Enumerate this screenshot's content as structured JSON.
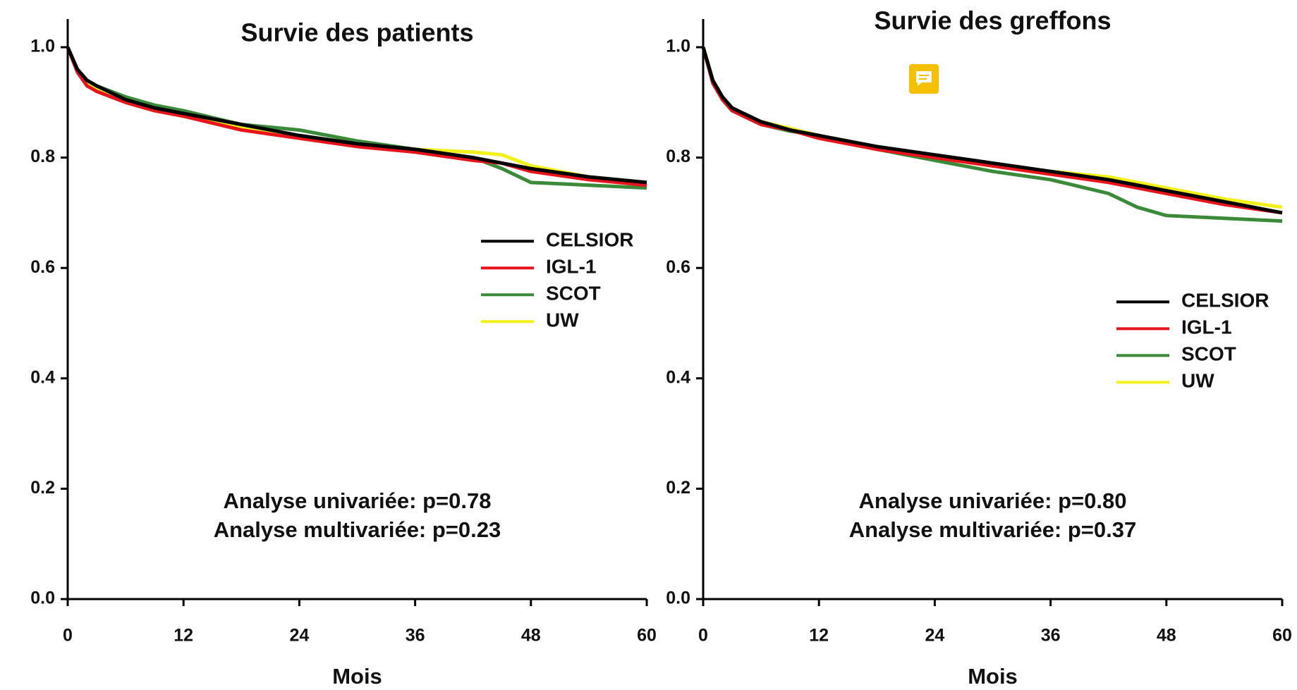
{
  "chart_data": [
    {
      "type": "line",
      "title": "Survie des patients",
      "xlabel": "Mois",
      "annotations": [
        "Analyse univariée: p=0.78",
        "Analyse multivariée: p=0.23"
      ],
      "x": [
        0,
        1,
        2,
        3,
        6,
        9,
        12,
        18,
        24,
        30,
        36,
        42,
        45,
        48,
        54,
        60
      ],
      "series": [
        {
          "name": "CELSIOR",
          "color": "#000000",
          "values": [
            1.0,
            0.96,
            0.94,
            0.93,
            0.905,
            0.89,
            0.88,
            0.86,
            0.84,
            0.825,
            0.815,
            0.8,
            0.79,
            0.78,
            0.765,
            0.755
          ]
        },
        {
          "name": "IGL-1",
          "color": "#e8141c",
          "values": [
            1.0,
            0.955,
            0.93,
            0.92,
            0.9,
            0.885,
            0.875,
            0.85,
            0.835,
            0.82,
            0.81,
            0.795,
            0.79,
            0.775,
            0.76,
            0.75
          ]
        },
        {
          "name": "SCOT",
          "color": "#3a8a3a",
          "values": [
            1.0,
            0.96,
            0.94,
            0.93,
            0.91,
            0.895,
            0.885,
            0.86,
            0.85,
            0.83,
            0.815,
            0.8,
            0.78,
            0.755,
            0.75,
            0.745
          ]
        },
        {
          "name": "UW",
          "color": "#f2f21a",
          "values": [
            1.0,
            0.96,
            0.935,
            0.925,
            0.905,
            0.89,
            0.88,
            0.855,
            0.84,
            0.825,
            0.815,
            0.81,
            0.805,
            0.785,
            0.765,
            0.755
          ]
        }
      ],
      "xlim": [
        0,
        60
      ],
      "xticks": [
        0,
        12,
        24,
        36,
        48,
        60
      ],
      "ylim": [
        0,
        1
      ],
      "yticks": [
        {
          "value": 0,
          "label": "0.0"
        },
        0.2,
        0.4,
        0.6,
        0.8,
        {
          "value": 1,
          "label": "1.0"
        }
      ],
      "legend": "upper right"
    },
    {
      "type": "line",
      "title": "Survie des greffons",
      "xlabel": "Mois",
      "annotations": [
        "Analyse univariée: p=0.80",
        "Analyse multivariée: p=0.37"
      ],
      "x": [
        0,
        1,
        2,
        3,
        6,
        9,
        12,
        18,
        24,
        30,
        36,
        42,
        45,
        48,
        54,
        60
      ],
      "series": [
        {
          "name": "CELSIOR",
          "color": "#000000",
          "values": [
            1.0,
            0.94,
            0.91,
            0.89,
            0.865,
            0.85,
            0.84,
            0.82,
            0.805,
            0.79,
            0.775,
            0.76,
            0.75,
            0.74,
            0.72,
            0.7
          ]
        },
        {
          "name": "IGL-1",
          "color": "#e8141c",
          "values": [
            1.0,
            0.935,
            0.905,
            0.885,
            0.86,
            0.85,
            0.835,
            0.815,
            0.8,
            0.785,
            0.77,
            0.755,
            0.745,
            0.735,
            0.715,
            0.7
          ]
        },
        {
          "name": "SCOT",
          "color": "#3a8a3a",
          "values": [
            1.0,
            0.94,
            0.905,
            0.885,
            0.86,
            0.848,
            0.84,
            0.815,
            0.795,
            0.775,
            0.76,
            0.735,
            0.71,
            0.695,
            0.69,
            0.685
          ]
        },
        {
          "name": "UW",
          "color": "#f2f21a",
          "values": [
            1.0,
            0.94,
            0.91,
            0.89,
            0.865,
            0.853,
            0.84,
            0.82,
            0.8,
            0.785,
            0.775,
            0.765,
            0.755,
            0.745,
            0.725,
            0.71
          ]
        }
      ],
      "xlim": [
        0,
        60
      ],
      "xticks": [
        0,
        12,
        24,
        36,
        48,
        60
      ],
      "ylim": [
        0,
        1
      ],
      "yticks": [
        {
          "value": 0,
          "label": "0.0"
        },
        0.2,
        0.4,
        0.6,
        0.8,
        {
          "value": 1,
          "label": "1.0"
        }
      ],
      "legend": "center right"
    }
  ]
}
